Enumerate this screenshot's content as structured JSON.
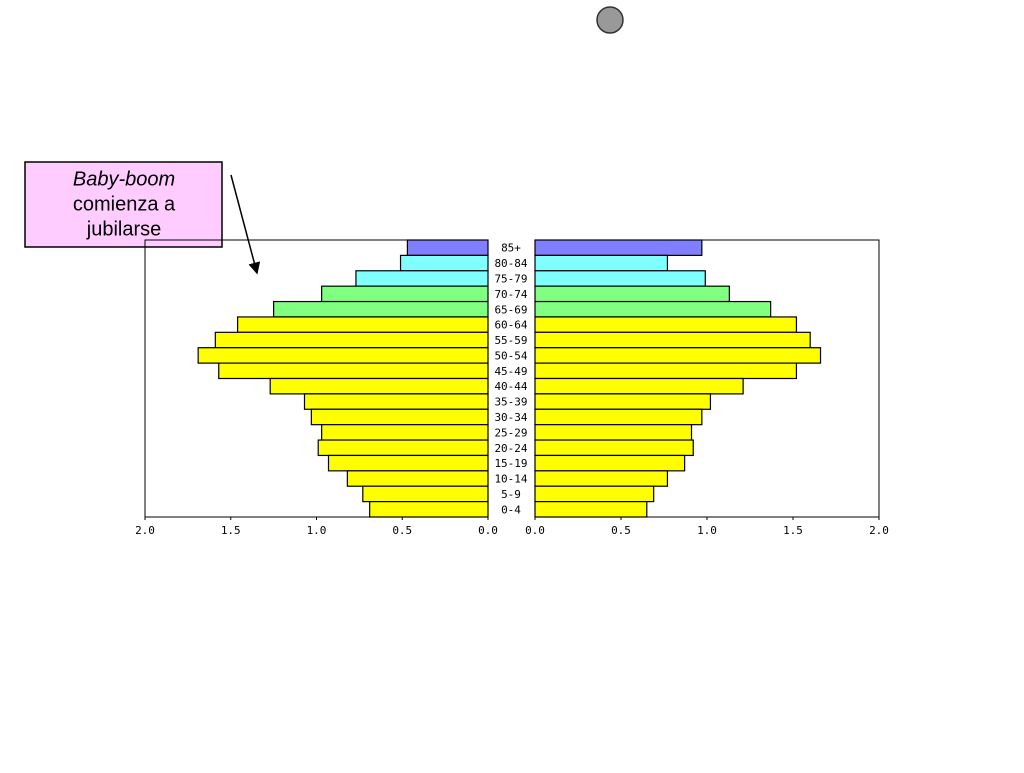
{
  "chart_data": {
    "type": "pyramid",
    "categories": [
      "85+",
      "80-84",
      "75-79",
      "70-74",
      "65-69",
      "60-64",
      "55-59",
      "50-54",
      "45-49",
      "40-44",
      "35-39",
      "30-34",
      "25-29",
      "20-24",
      "15-19",
      "10-14",
      "5-9",
      "0-4"
    ],
    "colors": [
      "#7f7fff",
      "#80ffff",
      "#80ffff",
      "#80ff80",
      "#80ff80",
      "#ffff00",
      "#ffff00",
      "#ffff00",
      "#ffff00",
      "#ffff00",
      "#ffff00",
      "#ffff00",
      "#ffff00",
      "#ffff00",
      "#ffff00",
      "#ffff00",
      "#ffff00",
      "#ffff00"
    ],
    "series": [
      {
        "side": "left",
        "values": [
          0.47,
          0.51,
          0.77,
          0.97,
          1.25,
          1.46,
          1.59,
          1.69,
          1.57,
          1.27,
          1.07,
          1.03,
          0.97,
          0.99,
          0.93,
          0.82,
          0.73,
          0.69
        ]
      },
      {
        "side": "right",
        "values": [
          0.97,
          0.77,
          0.99,
          1.13,
          1.37,
          1.52,
          1.6,
          1.66,
          1.52,
          1.21,
          1.02,
          0.97,
          0.91,
          0.92,
          0.87,
          0.77,
          0.69,
          0.65
        ]
      }
    ],
    "xlim": [
      0,
      2
    ],
    "xticks": [
      {
        "value": 0,
        "label": "0.0"
      },
      {
        "value": 0.5,
        "label": "0.5"
      },
      {
        "value": 1,
        "label": "1.0"
      },
      {
        "value": 1.5,
        "label": "1.5"
      },
      {
        "value": 2,
        "label": "2.0"
      }
    ],
    "annotation": {
      "emphasis": "Baby-boom",
      "line1": "comienza a",
      "line2": "jubilarse"
    }
  }
}
